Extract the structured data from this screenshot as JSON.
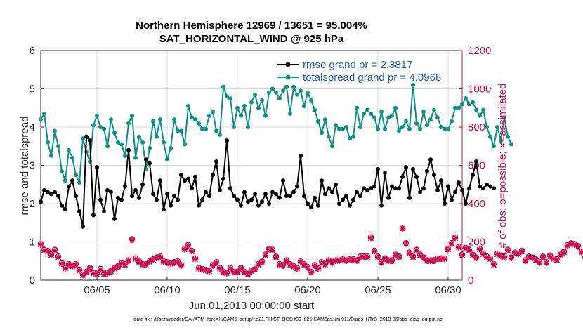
{
  "chart_data": {
    "type": "line",
    "title_line1": "Northern Hemisphere 12969 / 13651 = 95.004%",
    "title_line2": "SAT_HORIZONTAL_WIND @ 925 hPa",
    "xlabel": "Jun.01,2013 00:00:00 start",
    "ylabel": "rmse and totalspread",
    "ylabel_right": "# of obs: o=possible; ×=assimilated",
    "footnote": "data file: /Users/raeder/DAI/ATM_forcXX/CAM6_setup/f.e21.FHIST_BGC.f09_025.CAM6assim.011/Diags_NTrS_2013-06/obs_diag_output.nc",
    "x_unit": "day of June 2013",
    "xlim": [
      1,
      31
    ],
    "ylim": [
      0,
      6
    ],
    "ylim_right": [
      0,
      1200
    ],
    "x_ticks": [
      5,
      10,
      15,
      20,
      25,
      30
    ],
    "x_tick_labels": [
      "06/05",
      "06/10",
      "06/15",
      "06/20",
      "06/25",
      "06/30"
    ],
    "y_ticks": [
      0,
      1,
      2,
      3,
      4,
      5,
      6
    ],
    "y_ticks_right": [
      0,
      200,
      400,
      600,
      800,
      1000,
      1200
    ],
    "grid": true,
    "legend_position": "top-right",
    "colors": {
      "rmse": "#000000",
      "totalspread": "#138f8a",
      "obs": "#cc0f54",
      "legend_text": "#1f5fd6",
      "right_axis": "#cc0f54"
    },
    "series": [
      {
        "name": "rmse grand pr = 2.3817",
        "axis": "left",
        "x_start": 1.0,
        "x_step": 0.25,
        "values": [
          2.05,
          2.35,
          2.3,
          2.25,
          2.3,
          2.2,
          1.95,
          1.85,
          2.45,
          2.6,
          2.2,
          1.8,
          1.4,
          3.75,
          3.65,
          1.7,
          2.95,
          2.1,
          1.8,
          2.35,
          2.3,
          1.6,
          2.15,
          2.1,
          2.45,
          3.4,
          2.2,
          2.35,
          2.15,
          2.5,
          3.15,
          3.05,
          2.25,
          2.1,
          2.6,
          1.85,
          2.25,
          1.95,
          2.2,
          2.1,
          2.75,
          2.6,
          2.65,
          2.4,
          2.7,
          1.95,
          2.1,
          2.3,
          2.2,
          2.75,
          3.1,
          2.35,
          2.65,
          3.65,
          2.4,
          2.2,
          2.1,
          1.95,
          2.3,
          2.05,
          2.1,
          2.25,
          1.95,
          2.05,
          2.25,
          2.0,
          2.3,
          2.25,
          2.15,
          2.6,
          2.2,
          2.2,
          2.3,
          2.45,
          3.25,
          2.2,
          2.0,
          1.9,
          2.15,
          1.95,
          2.6,
          2.25,
          2.4,
          2.3,
          2.5,
          2.0,
          2.1,
          2.2,
          1.95,
          2.1,
          2.3,
          2.2,
          2.4,
          2.35,
          2.4,
          2.45,
          2.9,
          1.95,
          2.8,
          2.15,
          2.45,
          2.4,
          2.4,
          2.7,
          2.95,
          2.15,
          2.9,
          2.7,
          2.3,
          2.4,
          2.85,
          3.15,
          2.75,
          2.35,
          2.6,
          2.0,
          2.45,
          2.1,
          2.3,
          2.55,
          2.35,
          2.0,
          2.4,
          2.75,
          3.1,
          2.45,
          2.4,
          2.5,
          2.45,
          2.4
        ]
      },
      {
        "name": "totalspread grand pr = 4.0968",
        "axis": "left",
        "x_start": 1.0,
        "x_step": 0.25,
        "values": [
          4.2,
          4.35,
          3.6,
          3.25,
          3.9,
          3.5,
          2.85,
          2.6,
          3.4,
          3.2,
          2.75,
          2.55,
          3.7,
          3.35,
          3.1,
          4.05,
          4.3,
          4.0,
          3.95,
          3.5,
          4.2,
          3.85,
          3.6,
          3.55,
          3.25,
          4.1,
          4.3,
          3.2,
          3.75,
          3.6,
          2.9,
          3.45,
          4.15,
          3.75,
          4.2,
          3.6,
          3.15,
          3.45,
          4.2,
          3.9,
          3.9,
          3.55,
          4.55,
          4.25,
          4.2,
          4.1,
          3.95,
          3.95,
          4.3,
          4.4,
          3.9,
          3.8,
          5.05,
          4.8,
          4.75,
          4.0,
          4.5,
          4.3,
          4.55,
          4.0,
          4.65,
          4.85,
          4.5,
          4.7,
          4.3,
          4.9,
          5.0,
          4.9,
          4.75,
          4.95,
          5.05,
          4.35,
          5.05,
          4.85,
          4.95,
          4.55,
          4.9,
          4.7,
          4.45,
          4.15,
          3.85,
          4.2,
          3.75,
          3.5,
          4.05,
          3.95,
          3.95,
          4.0,
          3.7,
          3.75,
          4.5,
          4.0,
          4.35,
          4.45,
          4.35,
          4.25,
          3.95,
          4.4,
          3.95,
          4.25,
          4.3,
          4.5,
          3.9,
          4.0,
          4.15,
          3.95,
          5.1,
          4.1,
          3.95,
          4.4,
          4.05,
          4.2,
          4.45,
          4.25,
          4.0,
          3.95,
          3.95,
          4.15,
          4.5,
          4.5,
          4.6,
          4.75,
          4.6,
          4.65,
          4.45,
          4.3,
          4.45,
          4.0,
          3.75,
          3.5,
          4.0,
          3.65,
          4.25,
          3.75,
          3.55
        ]
      },
      {
        "name": "# of obs assimilated",
        "axis": "right",
        "x_start": 1.0,
        "x_step": 0.25,
        "values": [
          185,
          155,
          150,
          130,
          155,
          120,
          85,
          60,
          80,
          70,
          80,
          50,
          25,
          40,
          60,
          35,
          30,
          55,
          30,
          35,
          45,
          60,
          70,
          85,
          80,
          100,
          210,
          110,
          95,
          80,
          80,
          95,
          105,
          115,
          120,
          95,
          90,
          85,
          90,
          95,
          75,
          160,
          180,
          150,
          110,
          60,
          55,
          50,
          45,
          75,
          90,
          60,
          40,
          35,
          60,
          40,
          40,
          60,
          40,
          30,
          45,
          55,
          80,
          95,
          130,
          160,
          155,
          120,
          80,
          75,
          100,
          80,
          70,
          60,
          95,
          80,
          65,
          40,
          75,
          60,
          90,
          80,
          100,
          90,
          100,
          100,
          105,
          100,
          105,
          105,
          100,
          120,
          120,
          120,
          220,
          150,
          120,
          90,
          110,
          100,
          100,
          130,
          120,
          270,
          190,
          140,
          120,
          155,
          130,
          115,
          100,
          100,
          100,
          110,
          110,
          110,
          160,
          190,
          220,
          170,
          130,
          165,
          155,
          130,
          115,
          160,
          135,
          120,
          110,
          80,
          135,
          125,
          120,
          155,
          115,
          140,
          135,
          150,
          100,
          120,
          115,
          105,
          90,
          120,
          90,
          125,
          110,
          105,
          130,
          145,
          180,
          190,
          185,
          175,
          145,
          115,
          0
        ]
      },
      {
        "name": "# of obs possible",
        "axis": "right",
        "x_start": 1.0,
        "x_step": 0.25,
        "values": [
          190,
          160,
          155,
          135,
          160,
          125,
          90,
          65,
          85,
          75,
          85,
          55,
          30,
          45,
          65,
          40,
          35,
          60,
          35,
          40,
          50,
          65,
          75,
          90,
          85,
          105,
          215,
          115,
          100,
          85,
          85,
          100,
          110,
          120,
          125,
          100,
          95,
          90,
          95,
          100,
          80,
          165,
          185,
          155,
          115,
          65,
          60,
          55,
          50,
          80,
          95,
          65,
          45,
          40,
          65,
          45,
          45,
          65,
          45,
          35,
          50,
          60,
          85,
          100,
          135,
          165,
          160,
          125,
          85,
          80,
          105,
          85,
          75,
          65,
          100,
          85,
          70,
          45,
          80,
          65,
          95,
          85,
          105,
          95,
          105,
          105,
          110,
          105,
          110,
          110,
          105,
          125,
          125,
          125,
          225,
          155,
          125,
          95,
          115,
          105,
          105,
          135,
          125,
          270,
          195,
          145,
          125,
          160,
          135,
          120,
          105,
          105,
          105,
          115,
          115,
          115,
          165,
          195,
          225,
          175,
          135,
          170,
          160,
          135,
          120,
          165,
          140,
          125,
          115,
          85,
          140,
          130,
          125,
          160,
          120,
          145,
          140,
          155,
          105,
          125,
          120,
          110,
          95,
          125,
          95,
          130,
          115,
          110,
          135,
          150,
          185,
          195,
          190,
          180,
          150,
          120,
          0
        ]
      }
    ]
  }
}
